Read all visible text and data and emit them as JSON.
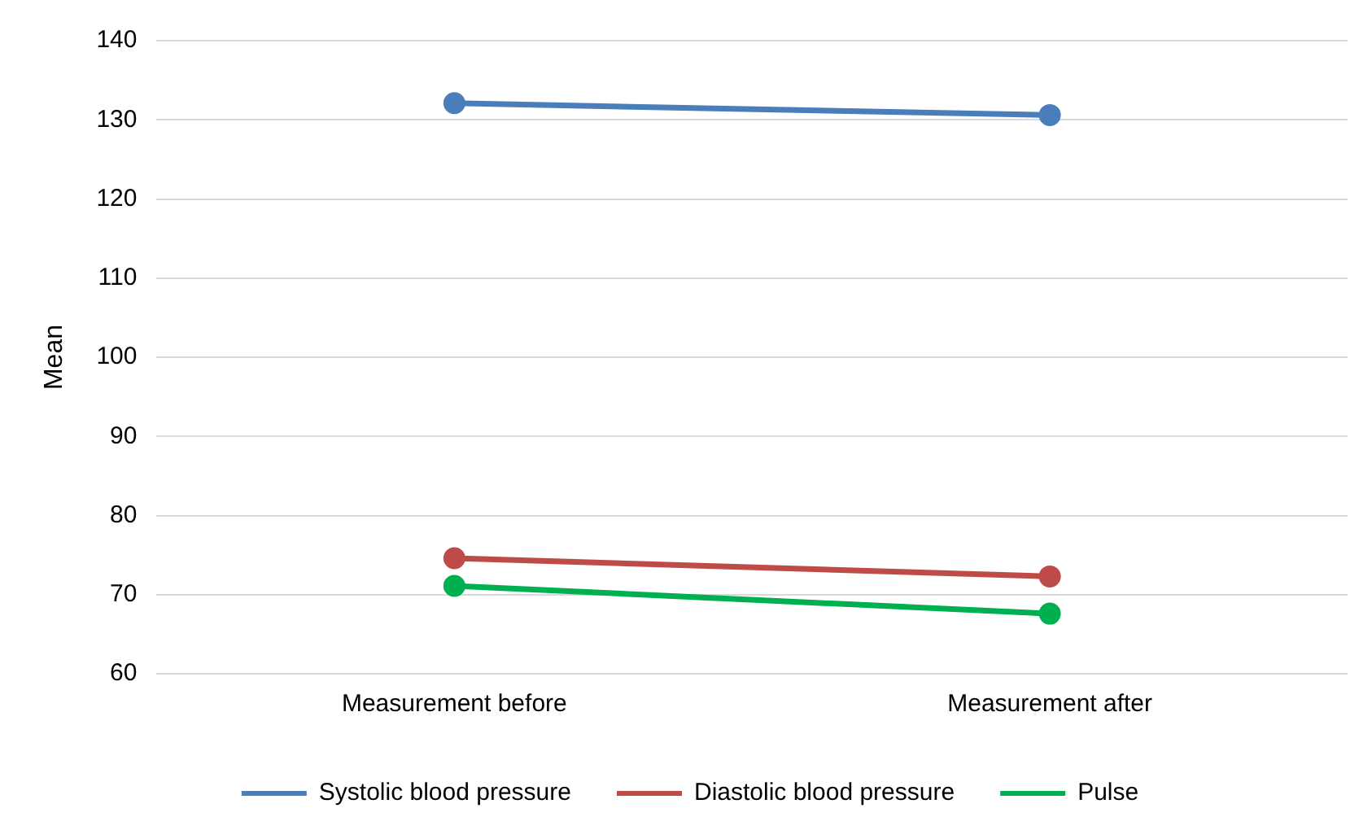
{
  "chart_data": {
    "type": "line",
    "ylabel": "Mean",
    "categories": [
      "Measurement before",
      "Measurement after"
    ],
    "series": [
      {
        "name": "Systolic blood pressure",
        "color": "#4a7ebb",
        "values": [
          132.1,
          130.6
        ]
      },
      {
        "name": "Diastolic blood pressure",
        "color": "#be4b48",
        "values": [
          74.6,
          72.3
        ]
      },
      {
        "name": "Pulse",
        "color": "#00b050",
        "values": [
          71.1,
          67.6
        ]
      }
    ],
    "ylim": [
      60,
      140
    ],
    "yticks": [
      60,
      70,
      80,
      90,
      100,
      110,
      120,
      130,
      140
    ],
    "grid": "y",
    "legend": "bottom",
    "marker": "circle",
    "line_style": "solid"
  }
}
